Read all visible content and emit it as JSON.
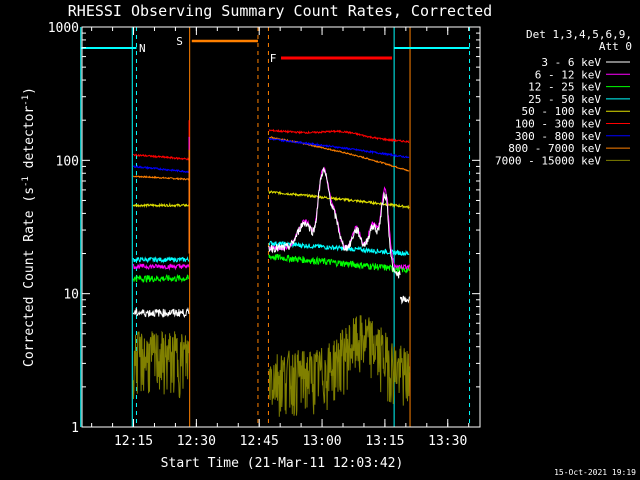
{
  "chart_data": {
    "type": "line",
    "title": "RHESSI Observing Summary Count Rates, Corrected",
    "xlabel": "Start Time (21-Mar-11 12:03:42)",
    "ylabel_main": "Corrected Count Rate (s",
    "ylabel_sup1": "-1",
    "ylabel_mid": " detector",
    "ylabel_sup2": "-1",
    "ylabel_end": ")",
    "y_scale": "log",
    "ylim": [
      1,
      1000
    ],
    "xlim_minutes": [
      0,
      95
    ],
    "x_ticks": [
      {
        "m": 12.3,
        "label": "12:15"
      },
      {
        "m": 27.3,
        "label": "12:30"
      },
      {
        "m": 42.3,
        "label": "12:45"
      },
      {
        "m": 57.3,
        "label": "13:00"
      },
      {
        "m": 72.3,
        "label": "13:15"
      },
      {
        "m": 87.3,
        "label": "13:30"
      }
    ],
    "y_ticks": [
      {
        "v": 1,
        "label": "1"
      },
      {
        "v": 10,
        "label": "10"
      },
      {
        "v": 100,
        "label": "100"
      },
      {
        "v": 1000,
        "label": "1000"
      }
    ],
    "legend_header": [
      "Det 1,3,4,5,6,9,",
      "Att 0"
    ],
    "legend_placement": "right",
    "timestamp": "15-Oct-2021 19:19",
    "flags": [
      {
        "label": "N",
        "color": "#00ffff"
      },
      {
        "label": "S",
        "color": "#ff8000"
      },
      {
        "label": "F",
        "color": "#ff0000"
      }
    ],
    "series": [
      {
        "name": "3 - 6 keV",
        "color": "#ffffff"
      },
      {
        "name": "6 - 12 keV",
        "color": "#ff00ff"
      },
      {
        "name": "12 - 25 keV",
        "color": "#00ff00"
      },
      {
        "name": "25 - 50 keV",
        "color": "#00ffff"
      },
      {
        "name": "50 - 100 keV",
        "color": "#e0e000"
      },
      {
        "name": "100 - 300 keV",
        "color": "#ff0000"
      },
      {
        "name": "300 - 800 keV",
        "color": "#0000ff"
      },
      {
        "name": "800 - 7000 keV",
        "color": "#ff8000"
      },
      {
        "name": "7000 - 15000 keV",
        "color": "#808000"
      }
    ]
  }
}
